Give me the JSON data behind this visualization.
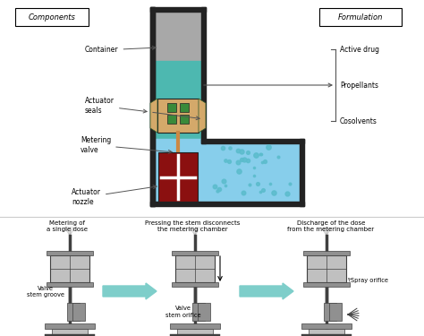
{
  "bg_color": "#ffffff",
  "colors": {
    "container_wall": "#1a1a2e",
    "gray_top": "#a8a8a8",
    "liquid_teal": "#4db8b0",
    "liquid_light_blue": "#87ceeb",
    "actuator_tan": "#d4a96a",
    "actuator_green": "#3a8a3a",
    "metering_red": "#8b1010",
    "spray_dot": "#5bbccc",
    "arrow_color": "#555555",
    "bottom_arrow": "#7ececa",
    "seal_outline": "#2a5a2a",
    "dark_border": "#222222"
  },
  "components_box": {
    "label": "Components"
  },
  "formulation_box": {
    "label": "Formulation"
  },
  "formulation_labels": [
    "Active drug",
    "Propellants",
    "Cosolvents"
  ],
  "component_labels": [
    "Container",
    "Actuator\nseals",
    "Metering\nvalve",
    "Actuator\nnozzle"
  ],
  "bottom_titles": [
    "Metering of\na single dose",
    "Pressing the stem disconnects\nthe metering chamber",
    "Discharge of the dose\nfrom the metering chamber"
  ],
  "bottom_label_left": "Valve\nstem groove",
  "bottom_label_mid": "Valve\nstem orifice",
  "bottom_label_right": "Spray orifice"
}
